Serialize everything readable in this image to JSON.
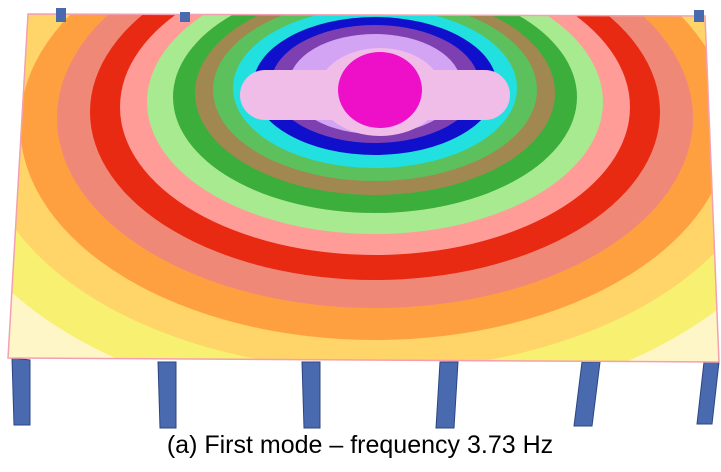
{
  "caption": "(a) First mode – frequency 3.73 Hz"
}
